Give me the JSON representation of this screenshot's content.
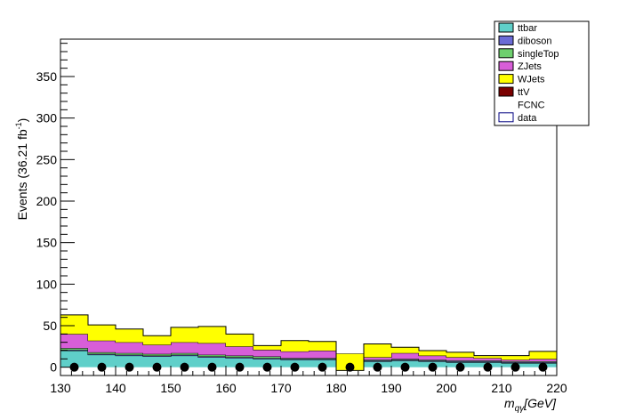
{
  "chart_data": {
    "type": "bar",
    "stacked": true,
    "title": "",
    "xlabel": "m_{qγ}[GeV]",
    "xlabel_parts": {
      "main": "m",
      "sub": "qγ",
      "unit": "[GeV]"
    },
    "ylabel": "Events (36.21 fb⁻¹)",
    "ylabel_parts": {
      "main": "Events (36.21 fb",
      "sup": "-1",
      "tail": ")"
    },
    "xlim": [
      130,
      220
    ],
    "ylim": [
      -10,
      395
    ],
    "x_ticks": [
      "130",
      "140",
      "150",
      "160",
      "170",
      "180",
      "190",
      "200",
      "210",
      "220"
    ],
    "y_ticks": [
      "0",
      "50",
      "100",
      "150",
      "200",
      "250",
      "300",
      "350"
    ],
    "bin_edges": [
      130,
      135,
      140,
      145,
      150,
      155,
      160,
      165,
      170,
      175,
      180,
      185,
      190,
      195,
      200,
      205,
      210,
      215,
      220
    ],
    "series": [
      {
        "name": "ttbar",
        "color": "#5fcfc9",
        "values": [
          20,
          15,
          14,
          13,
          14,
          12,
          11,
          10,
          9,
          9,
          8,
          7,
          8,
          7,
          6,
          6,
          5,
          5
        ]
      },
      {
        "name": "diboson",
        "color": "#6b6bd6",
        "values": [
          1,
          1,
          1,
          1,
          1,
          1,
          1,
          1,
          1,
          1,
          1,
          1,
          1,
          1,
          1,
          1,
          1,
          1
        ]
      },
      {
        "name": "singleTop",
        "color": "#6ecf6e",
        "values": [
          2,
          2,
          2,
          2,
          2,
          2,
          2,
          2,
          1,
          1,
          1,
          1,
          1,
          1,
          1,
          1,
          1,
          1
        ]
      },
      {
        "name": "ZJets",
        "color": "#d85ed8",
        "values": [
          17,
          14,
          13,
          11,
          13,
          14,
          11,
          8,
          8,
          9,
          6,
          3,
          7,
          5,
          4,
          3,
          2,
          3
        ]
      },
      {
        "name": "WJets",
        "color": "#ffff00",
        "values": [
          23,
          19,
          16,
          11,
          18,
          20,
          15,
          5,
          13,
          11,
          -20,
          16,
          7,
          6,
          6,
          3,
          5,
          9
        ]
      },
      {
        "name": "ttV",
        "color": "#7a0000",
        "values": []
      },
      {
        "name": "FCNC",
        "color": "none",
        "values": []
      },
      {
        "name": "data",
        "color": "#ffffff",
        "values": [
          0,
          0,
          0,
          0,
          0,
          0,
          0,
          0,
          0,
          0,
          0,
          0,
          0,
          0,
          0,
          0,
          0,
          0
        ]
      }
    ],
    "legend_placement": "top-right",
    "grid": false
  }
}
